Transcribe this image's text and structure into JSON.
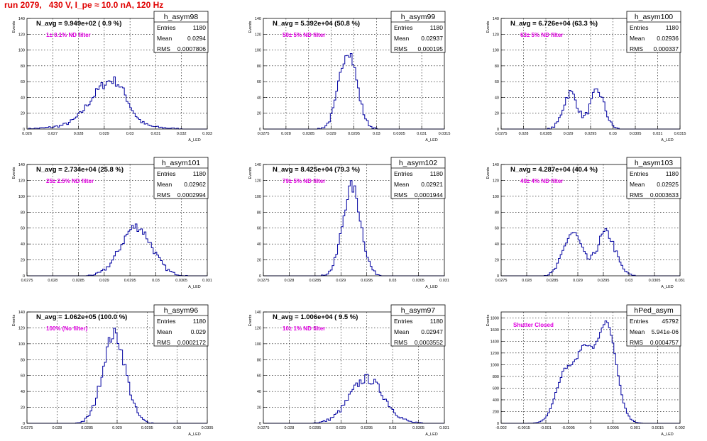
{
  "page": {
    "title": "run 2079,   430 V, I_pe ≈ 10.0 nA, 120 Hz"
  },
  "colors": {
    "hist": "#0000a0",
    "annotation": "#e000e0",
    "title": "#e00000",
    "frame": "#000000",
    "grid": "#000000"
  },
  "axis": {
    "ylabel": "Events",
    "xlabel": "A_LED"
  },
  "stats_labels": {
    "entries": "Entries",
    "mean": "Mean",
    "rms": "RMS"
  },
  "chart_data": [
    {
      "type": "histogram",
      "name": "h_asym98",
      "navg": "N_avg = 9.949e+02 ( 0.9 %)",
      "annotation": "1± 0.1% ND filter",
      "entries": "1180",
      "mean": "0.0294",
      "rms": "0.0007806",
      "xlim": [
        0.026,
        0.033
      ],
      "xticks": [
        "0.026",
        "0.027",
        "0.028",
        "0.029",
        "0.03",
        "0.031",
        "0.032",
        "0.033"
      ],
      "ylim": [
        0,
        140
      ],
      "yticks": [
        "0",
        "20",
        "40",
        "60",
        "80",
        "100",
        "120",
        "140"
      ],
      "peaks": [
        [
          0.029,
          0.0006,
          40
        ],
        [
          0.0296,
          0.0004,
          22
        ],
        [
          0.029,
          0.0012,
          10
        ]
      ]
    },
    {
      "type": "histogram",
      "name": "h_asym99",
      "navg": "N_avg = 5.392e+04 (50.8 %)",
      "annotation": "50± 5% ND filter",
      "entries": "1180",
      "mean": "0.02937",
      "rms": "0.000195",
      "xlim": [
        0.0275,
        0.0315
      ],
      "xticks": [
        "0.0275",
        "0.028",
        "0.0285",
        "0.029",
        "0.0295",
        "0.03",
        "0.0305",
        "0.031",
        "0.0315"
      ],
      "ylim": [
        0,
        140
      ],
      "yticks": [
        "0",
        "20",
        "40",
        "60",
        "80",
        "100",
        "120",
        "140"
      ],
      "peaks": [
        [
          0.02937,
          0.000195,
          100
        ]
      ]
    },
    {
      "type": "histogram",
      "name": "h_asym100",
      "navg": "N_avg = 6.726e+04 (63.3 %)",
      "annotation": "63± 5% ND filter",
      "entries": "1180",
      "mean": "0.02936",
      "rms": "0.000337",
      "xlim": [
        0.0275,
        0.0315
      ],
      "xticks": [
        "0.0275",
        "0.028",
        "0.0285",
        "0.029",
        "0.0295",
        "0.03",
        "0.0305",
        "0.031",
        "0.0315"
      ],
      "ylim": [
        0,
        140
      ],
      "yticks": [
        "0",
        "20",
        "40",
        "60",
        "80",
        "100",
        "120",
        "140"
      ],
      "peaks": [
        [
          0.02905,
          0.00016,
          46
        ],
        [
          0.02965,
          0.00016,
          48
        ]
      ]
    },
    {
      "type": "histogram",
      "name": "h_asym101",
      "navg": "N_avg = 2.734e+04 (25.8 %)",
      "annotation": "25± 2.5% ND filter",
      "entries": "1180",
      "mean": "0.02962",
      "rms": "0.0002994",
      "xlim": [
        0.0275,
        0.031
      ],
      "xticks": [
        "0.0275",
        "0.028",
        "0.0285",
        "0.029",
        "0.0295",
        "0.03",
        "0.0305",
        "0.031"
      ],
      "ylim": [
        0,
        140
      ],
      "yticks": [
        "0",
        "20",
        "40",
        "60",
        "80",
        "100",
        "120",
        "140"
      ],
      "peaks": [
        [
          0.02962,
          0.0003,
          62
        ]
      ]
    },
    {
      "type": "histogram",
      "name": "h_asym102",
      "navg": "N_avg = 8.425e+04 (79.3 %)",
      "annotation": "79± 5% ND filter",
      "entries": "1180",
      "mean": "0.02921",
      "rms": "0.0001944",
      "xlim": [
        0.0275,
        0.031
      ],
      "xticks": [
        "0.0275",
        "0.028",
        "0.0285",
        "0.029",
        "0.0295",
        "0.03",
        "0.0305",
        "0.031"
      ],
      "ylim": [
        0,
        140
      ],
      "yticks": [
        "0",
        "20",
        "40",
        "60",
        "80",
        "100",
        "120",
        "140"
      ],
      "peaks": [
        [
          0.02921,
          0.000175,
          112
        ]
      ]
    },
    {
      "type": "histogram",
      "name": "h_asym103",
      "navg": "N_avg = 4.287e+04 (40.4 %)",
      "annotation": "40± 4% ND filter",
      "entries": "1180",
      "mean": "0.02925",
      "rms": "0.0003633",
      "xlim": [
        0.0275,
        0.031
      ],
      "xticks": [
        "0.0275",
        "0.028",
        "0.0285",
        "0.029",
        "0.0295",
        "0.03",
        "0.0305",
        "0.031"
      ],
      "ylim": [
        0,
        140
      ],
      "yticks": [
        "0",
        "20",
        "40",
        "60",
        "80",
        "100",
        "120",
        "140"
      ],
      "peaks": [
        [
          0.0289,
          0.00018,
          54
        ],
        [
          0.02955,
          0.00018,
          54
        ]
      ]
    },
    {
      "type": "histogram",
      "name": "h_asym96",
      "navg": "N_avg = 1.062e+05 (100.0 %)",
      "annotation": "100% (No filter)",
      "entries": "1180",
      "mean": "0.029",
      "rms": "0.0002172",
      "xlim": [
        0.0275,
        0.0305
      ],
      "xticks": [
        "0.0275",
        "0.028",
        "0.0285",
        "0.029",
        "0.0295",
        "0.03",
        "0.0305"
      ],
      "ylim": [
        0,
        140
      ],
      "yticks": [
        "0",
        "20",
        "40",
        "60",
        "80",
        "100",
        "120",
        "140"
      ],
      "peaks": [
        [
          0.02895,
          0.00019,
          112
        ]
      ]
    },
    {
      "type": "histogram",
      "name": "h_asym97",
      "navg": "N_avg = 1.006e+04 ( 9.5 %)",
      "annotation": "10± 1% ND filter",
      "entries": "1180",
      "mean": "0.02947",
      "rms": "0.0003552",
      "xlim": [
        0.0275,
        0.031
      ],
      "xticks": [
        "0.0275",
        "0.028",
        "0.0285",
        "0.029",
        "0.0295",
        "0.03",
        "0.0305",
        "0.031"
      ],
      "ylim": [
        0,
        140
      ],
      "yticks": [
        "0",
        "20",
        "40",
        "60",
        "80",
        "100",
        "120",
        "140"
      ],
      "peaks": [
        [
          0.0295,
          0.00033,
          56
        ]
      ]
    },
    {
      "type": "histogram",
      "name": "hPed_asym",
      "navg": "",
      "annotation": "Shutter Closed",
      "entries": "45792",
      "mean": "5.941e-06",
      "rms": "0.0004757",
      "xlim": [
        -0.002,
        0.002
      ],
      "xticks": [
        "-0.002",
        "-0.0015",
        "-0.001",
        "-0.0005",
        "0",
        "0.0005",
        "0.001",
        "0.0015",
        "0.002"
      ],
      "ylim": [
        0,
        1900
      ],
      "yticks": [
        "0",
        "200",
        "400",
        "600",
        "800",
        "1000",
        "1200",
        "1400",
        "1600",
        "1800"
      ],
      "peaks": [
        [
          -0.00055,
          0.00022,
          900
        ],
        [
          -0.00013,
          0.00017,
          1050
        ],
        [
          0.00035,
          0.00022,
          1700
        ]
      ]
    }
  ]
}
